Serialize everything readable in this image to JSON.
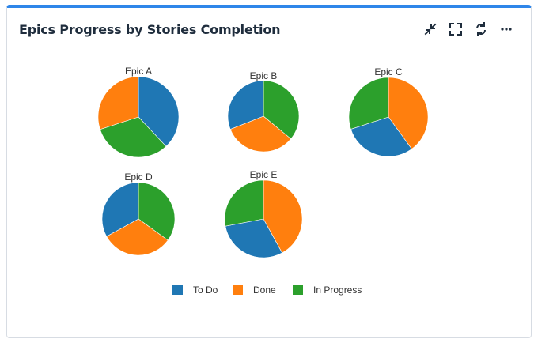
{
  "widget": {
    "title": "Epics Progress by Stories Completion",
    "icons": [
      "collapse-icon",
      "fullscreen-icon",
      "refresh-icon",
      "more-icon"
    ]
  },
  "chart_data": {
    "type": "pie",
    "title": "Epics Progress by Stories Completion",
    "legend_position": "bottom",
    "series_names": [
      "To Do",
      "Done",
      "In Progress"
    ],
    "colors": {
      "To Do": "#1f77b4",
      "Done": "#ff7f0e",
      "In Progress": "#2ca02c"
    },
    "pies": [
      {
        "label": "Epic A",
        "values": [
          {
            "name": "To Do",
            "value": 38
          },
          {
            "name": "In Progress",
            "value": 32
          },
          {
            "name": "Done",
            "value": 30
          }
        ]
      },
      {
        "label": "Epic B",
        "values": [
          {
            "name": "In Progress",
            "value": 36
          },
          {
            "name": "Done",
            "value": 33
          },
          {
            "name": "To Do",
            "value": 31
          }
        ]
      },
      {
        "label": "Epic C",
        "values": [
          {
            "name": "Done",
            "value": 40
          },
          {
            "name": "To Do",
            "value": 30
          },
          {
            "name": "In Progress",
            "value": 30
          }
        ]
      },
      {
        "label": "Epic D",
        "values": [
          {
            "name": "In Progress",
            "value": 35
          },
          {
            "name": "Done",
            "value": 32
          },
          {
            "name": "To Do",
            "value": 33
          }
        ]
      },
      {
        "label": "Epic E",
        "values": [
          {
            "name": "Done",
            "value": 42
          },
          {
            "name": "To Do",
            "value": 30
          },
          {
            "name": "In Progress",
            "value": 28
          }
        ]
      }
    ]
  }
}
